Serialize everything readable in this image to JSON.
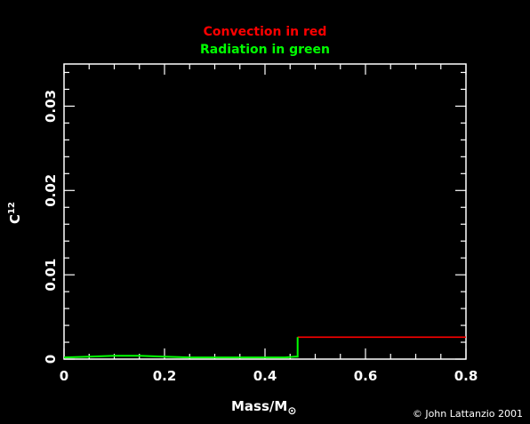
{
  "header": {
    "title_red": "Convection in red",
    "title_green": "Radiation in green"
  },
  "credit": "© John Lattanzio 2001",
  "chart_data": {
    "type": "line",
    "xlabel": "Mass/M",
    "xlabel_symbol": "⊙",
    "ylabel": "C",
    "ylabel_superscript": "12",
    "xlim": [
      0,
      0.8
    ],
    "ylim": [
      0,
      0.035
    ],
    "x_ticks": [
      0,
      0.2,
      0.4,
      0.6,
      0.8
    ],
    "x_tick_labels": [
      "0",
      "0.2",
      "0.4",
      "0.6",
      "0.8"
    ],
    "y_ticks": [
      0,
      0.01,
      0.02,
      0.03
    ],
    "y_tick_labels": [
      "0",
      "0.01",
      "0.02",
      "0.03"
    ],
    "series": [
      {
        "color": "#ff0000",
        "x": [
          0.465,
          0.8
        ],
        "y": [
          0.0026,
          0.0026
        ]
      },
      {
        "color": "#00ff00",
        "x": [
          0,
          0.05,
          0.1,
          0.15,
          0.2,
          0.25,
          0.3,
          0.35,
          0.4,
          0.44,
          0.46,
          0.465,
          0.465
        ],
        "y": [
          0.0002,
          0.0003,
          0.0004,
          0.0004,
          0.0003,
          0.0002,
          0.0002,
          0.0002,
          0.0002,
          0.0002,
          0.0003,
          0.0003,
          0.0026
        ]
      }
    ],
    "colors": {
      "axes": "#ffffff",
      "background": "#000000",
      "title_red": "#ff0000",
      "title_green": "#00ff00"
    }
  }
}
